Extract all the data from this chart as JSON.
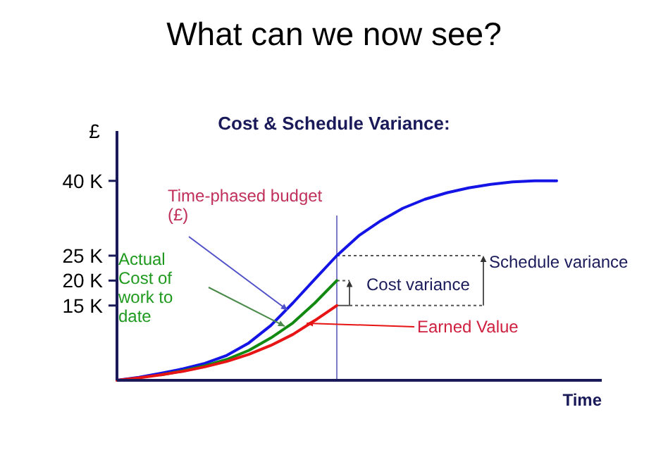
{
  "chart_data": {
    "type": "line",
    "title": "What can we now see?",
    "subtitle": "Cost & Schedule Variance:",
    "xlabel": "Time",
    "ylabel": "£",
    "categories": [
      null,
      null,
      null,
      null,
      null,
      null,
      null,
      null,
      null,
      null,
      null,
      null,
      null,
      null,
      null,
      null,
      null,
      null,
      null,
      null,
      null
    ],
    "series": [
      {
        "color": "#1414e6",
        "values": [
          0,
          0.6,
          1.4,
          2.3,
          3.4,
          5,
          7.5,
          11,
          15.5,
          20.3,
          25,
          29,
          32,
          34.5,
          36.3,
          37.6,
          38.6,
          39.3,
          39.8,
          40,
          40
        ]
      },
      {
        "color": "#128a12",
        "values": [
          null,
          null,
          1.1,
          1.9,
          2.9,
          4.2,
          6,
          8.5,
          11.5,
          15.5,
          20,
          null,
          null,
          null,
          null,
          null,
          null,
          null,
          null,
          null,
          null
        ]
      },
      {
        "color": "#e61414",
        "values": [
          0,
          0.5,
          1.1,
          1.8,
          2.7,
          3.8,
          5.2,
          7,
          9.2,
          12,
          15,
          null,
          null,
          null,
          null,
          null,
          null,
          null,
          null,
          null,
          null
        ]
      }
    ],
    "ylim": [
      0,
      50
    ],
    "yticks": [
      {
        "value": 15,
        "label": "15 K"
      },
      {
        "value": 20,
        "label": "20 K"
      },
      {
        "value": 25,
        "label": "25 K"
      },
      {
        "value": 40,
        "label": "40 K"
      }
    ],
    "tick_labels": "y",
    "grid": false,
    "marker": "none",
    "line_style": "solid",
    "ref_lines": [
      {
        "axis": "x",
        "color": "#7b7bc8"
      }
    ],
    "annotations": [
      "Time-phased budget (£)",
      "Actual Cost of work to date",
      "Earned Value",
      "Cost variance",
      "Schedule variance"
    ]
  }
}
